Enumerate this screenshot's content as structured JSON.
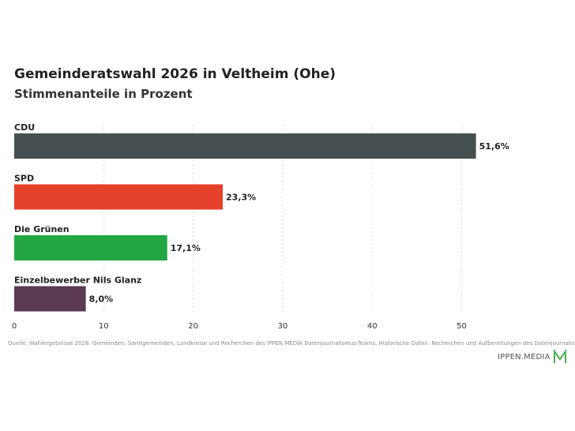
{
  "chart_data": {
    "type": "bar",
    "orientation": "horizontal",
    "title": "Gemeinderatswahl 2026 in Veltheim (Ohe)",
    "subtitle": "Stimmenanteile in Prozent",
    "categories": [
      "CDU",
      "SPD",
      "Die Grünen",
      "Einzelbewerber Nils Glanz"
    ],
    "values": [
      51.6,
      23.3,
      17.1,
      8.0
    ],
    "value_labels": [
      "51,6%",
      "23,3%",
      "17,1%",
      "8,0%"
    ],
    "colors": [
      "#454f4f",
      "#e5412b",
      "#22a743",
      "#5a3b52"
    ],
    "xlim": [
      0,
      60
    ],
    "xticks": [
      0,
      10,
      20,
      30,
      40,
      50
    ],
    "grid": true
  },
  "source": "Quelle: Wahlergebnisse 2026: Gemeinden, Samtgemeinden, Landkreise und Recherchen des IPPEN.MEDIA Datenjournalismus-Teams. Historische Daten: Recherchen und Aufbereitungen des Datenjournalismus-Teams.",
  "brand": {
    "name": "IPPEN.MEDIA",
    "logo_icon": "ippen-media-m-logo",
    "logo_color": "#4caf50"
  }
}
